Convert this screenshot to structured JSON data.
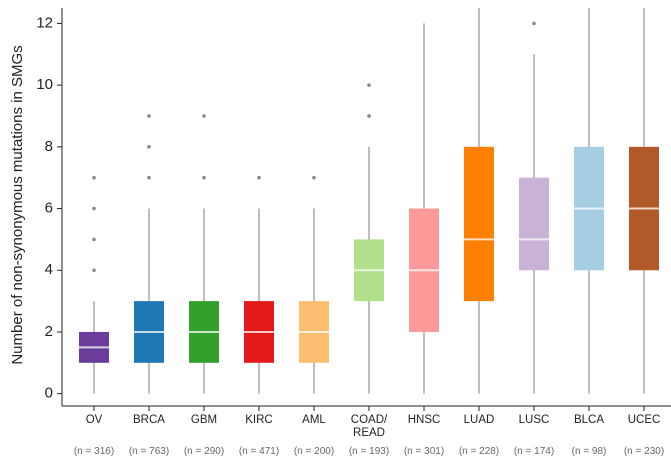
{
  "chart_data": {
    "type": "box",
    "y_label": "Number of non-synonymous mutations in SMGs",
    "categories": [
      "OV",
      "BRCA",
      "GBM",
      "KIRC",
      "AML",
      "COAD/\nREAD",
      "HNSC",
      "LUAD",
      "LUSC",
      "BLCA",
      "UCEC"
    ],
    "sample_sizes": [
      "(n = 316)",
      "(n = 763)",
      "(n = 290)",
      "(n = 471)",
      "(n = 200)",
      "(n = 193)",
      "(n = 301)",
      "(n = 228)",
      "(n = 174)",
      "(n = 98)",
      "(n = 230)"
    ],
    "colors": [
      "#6a3d9a",
      "#1f78b4",
      "#33a02c",
      "#e31a1c",
      "#fdbf6f",
      "#b2df8a",
      "#fb9a99",
      "#ff7f00",
      "#cab2d6",
      "#a6cee3",
      "#b15928"
    ],
    "boxes": [
      {
        "low": 0,
        "q1": 1,
        "median": 1.5,
        "q3": 2,
        "high": 3,
        "outliers": [
          4,
          5,
          6,
          7
        ]
      },
      {
        "low": 0,
        "q1": 1,
        "median": 2,
        "q3": 3,
        "high": 6,
        "outliers": [
          7,
          8,
          9
        ]
      },
      {
        "low": 0,
        "q1": 1,
        "median": 2,
        "q3": 3,
        "high": 6,
        "outliers": [
          7,
          9
        ]
      },
      {
        "low": 0,
        "q1": 1,
        "median": 2,
        "q3": 3,
        "high": 6,
        "outliers": [
          7
        ]
      },
      {
        "low": 0,
        "q1": 1,
        "median": 2,
        "q3": 3,
        "high": 6,
        "outliers": [
          7
        ]
      },
      {
        "low": 0,
        "q1": 3,
        "median": 4,
        "q3": 5,
        "high": 8,
        "outliers": [
          9,
          10
        ]
      },
      {
        "low": 0,
        "q1": 2,
        "median": 4,
        "q3": 6,
        "high": 12,
        "outliers": []
      },
      {
        "low": 0,
        "q1": 3,
        "median": 5,
        "q3": 8,
        "high": 13,
        "outliers": []
      },
      {
        "low": 0,
        "q1": 4,
        "median": 5,
        "q3": 7,
        "high": 11,
        "outliers": [
          12
        ]
      },
      {
        "low": 0,
        "q1": 4,
        "median": 6,
        "q3": 8,
        "high": 13,
        "outliers": []
      },
      {
        "low": 0,
        "q1": 4,
        "median": 6,
        "q3": 8,
        "high": 13,
        "outliers": []
      }
    ],
    "ylim": [
      -0.4,
      12.5
    ],
    "yticks": [
      0,
      2,
      4,
      6,
      8,
      10,
      12
    ]
  }
}
